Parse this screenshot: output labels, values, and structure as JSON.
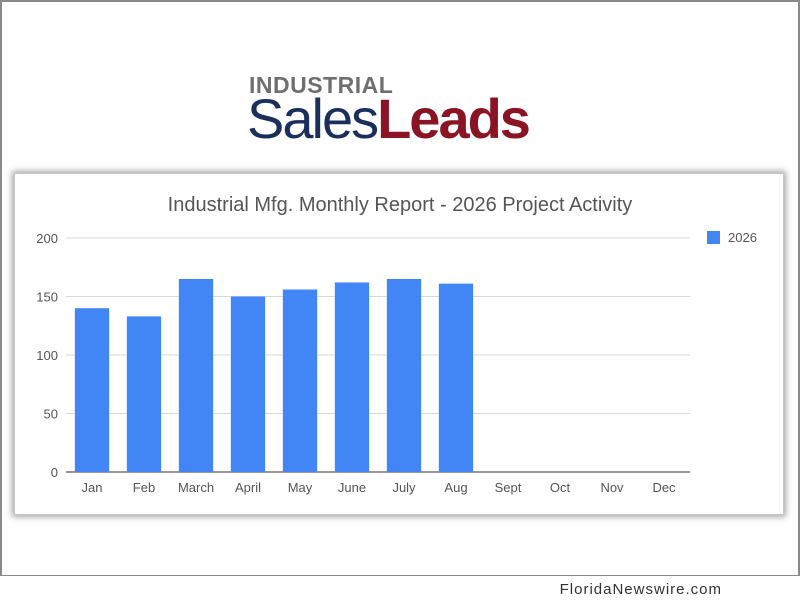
{
  "logo": {
    "top_text": "INDUSTRIAL",
    "sales_text": "Sales",
    "leads_text": "Leads"
  },
  "footer": {
    "text": "FloridaNewswire.com"
  },
  "colors": {
    "bar": "#4285f4",
    "logo_navy": "#1a2f5c",
    "logo_red": "#8a1424"
  },
  "chart_data": {
    "type": "bar",
    "title": "Industrial Mfg. Monthly Report - 2026 Project Activity",
    "categories": [
      "Jan",
      "Feb",
      "March",
      "April",
      "May",
      "June",
      "July",
      "Aug",
      "Sept",
      "Oct",
      "Nov",
      "Dec"
    ],
    "series": [
      {
        "name": "2026",
        "values": [
          140,
          133,
          165,
          150,
          156,
          162,
          165,
          161,
          0,
          0,
          0,
          0
        ]
      }
    ],
    "ylim": [
      0,
      200
    ],
    "yticks": [
      0,
      50,
      100,
      150,
      200
    ],
    "grid": true,
    "legend": "right"
  }
}
